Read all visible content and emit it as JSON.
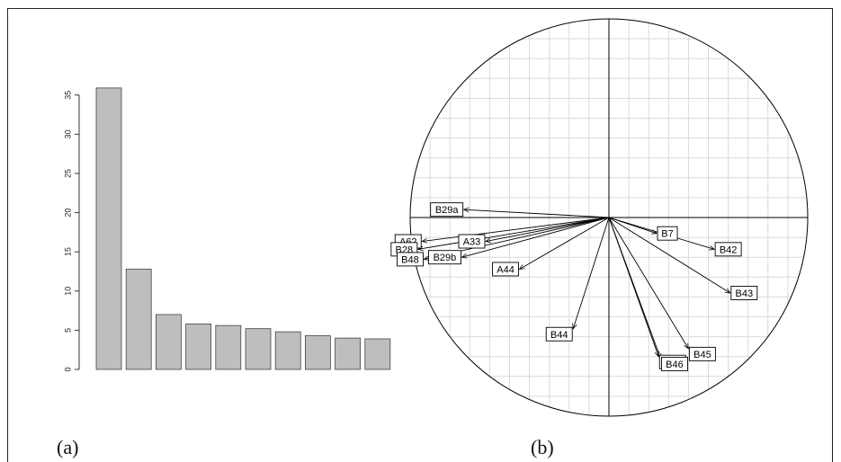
{
  "panels": {
    "a_label": "(a)",
    "b_label": "(b)"
  },
  "chart_data": [
    {
      "type": "bar",
      "categories": [
        "",
        "",
        "",
        "",
        "",
        "",
        "",
        "",
        "",
        ""
      ],
      "values": [
        35.9,
        12.8,
        7.0,
        5.8,
        5.6,
        5.2,
        4.8,
        4.3,
        4.0,
        3.9
      ],
      "yticks": [
        "0",
        "5",
        "10",
        "15",
        "20",
        "25",
        "30",
        "35"
      ],
      "ylim": [
        0,
        36
      ],
      "bar_color": "#bebebe"
    },
    {
      "type": "scatter",
      "subtype": "correlation-circle",
      "xlim": [
        -1,
        1
      ],
      "ylim": [
        -1,
        1
      ],
      "grid": true,
      "vectors": [
        {
          "label": "B29a",
          "x": -0.73,
          "y": 0.04
        },
        {
          "label": "A62",
          "x": -0.94,
          "y": -0.12
        },
        {
          "label": "B28",
          "x": -0.96,
          "y": -0.16
        },
        {
          "label": "B48",
          "x": -0.93,
          "y": -0.21
        },
        {
          "label": "B29b",
          "x": -0.74,
          "y": -0.2
        },
        {
          "label": "A33",
          "x": -0.62,
          "y": -0.12
        },
        {
          "label": "A44",
          "x": -0.45,
          "y": -0.26
        },
        {
          "label": "B44",
          "x": -0.18,
          "y": -0.56
        },
        {
          "label": "B7",
          "x": 0.24,
          "y": -0.08
        },
        {
          "label": "B42",
          "x": 0.53,
          "y": -0.16
        },
        {
          "label": "B43",
          "x": 0.61,
          "y": -0.38
        },
        {
          "label": "B45",
          "x": 0.4,
          "y": -0.66
        },
        {
          "label": "B47",
          "x": 0.25,
          "y": -0.7
        },
        {
          "label": "B46",
          "x": 0.26,
          "y": -0.71
        }
      ],
      "colors": {
        "axis": "#000000",
        "grid": "#d9d9d9",
        "circle": "#000000"
      }
    }
  ]
}
